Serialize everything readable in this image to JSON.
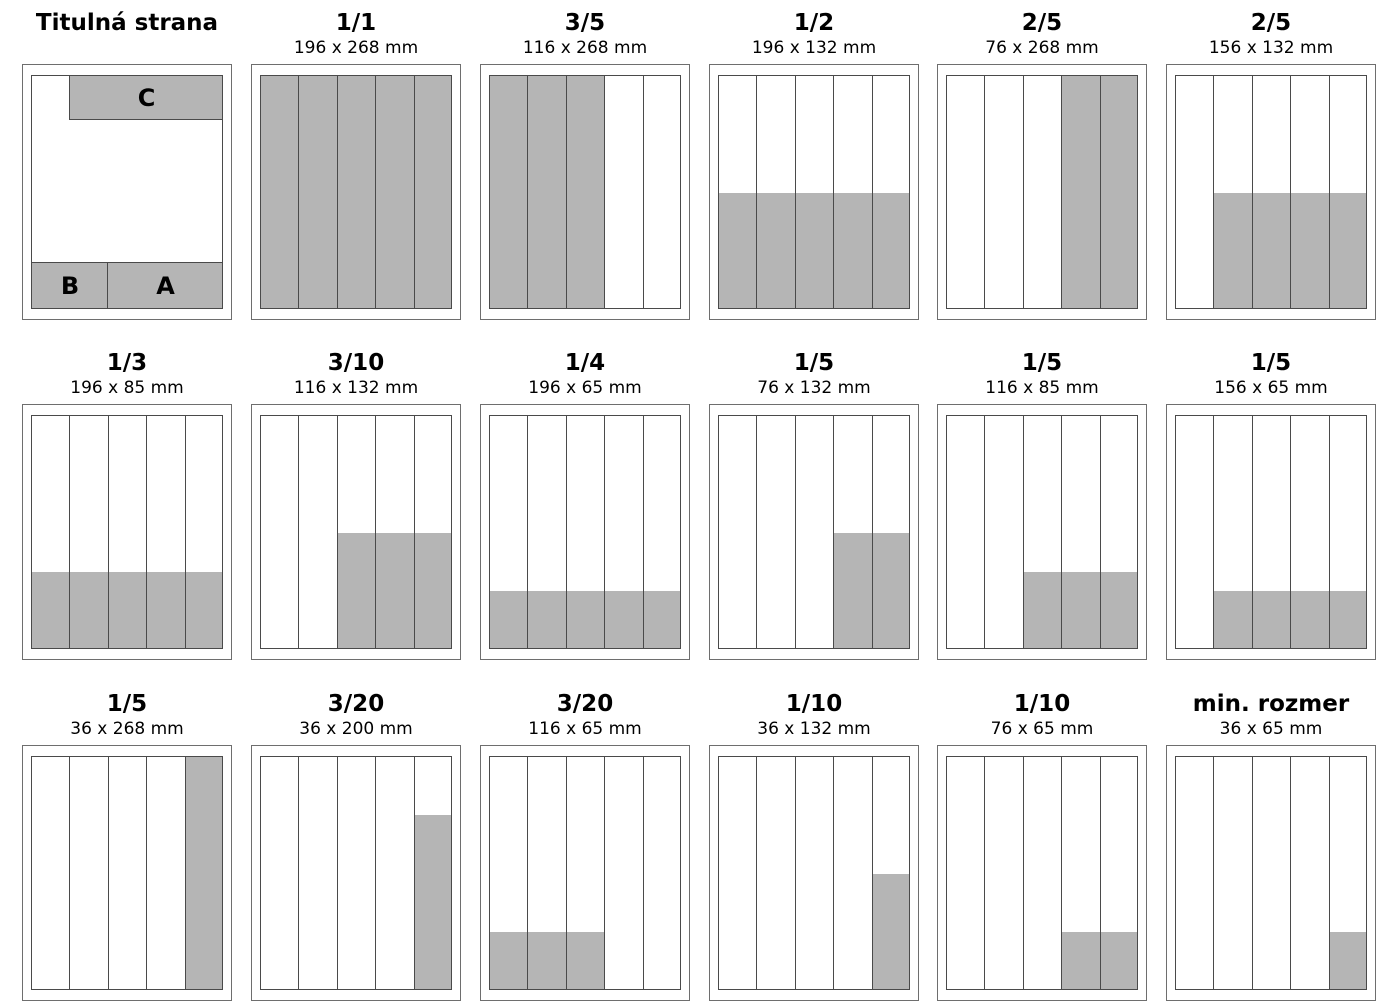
{
  "colors": {
    "fill": "#b5b5b5",
    "line": "#4a4a4a",
    "frame": "#6e6e6e"
  },
  "columns_per_page": 5,
  "cover": {
    "title": "Titulná strana",
    "zones": {
      "c": "C",
      "b": "B",
      "a": "A"
    }
  },
  "formats": [
    {
      "title": "1/1",
      "dims": "196 x 268 mm",
      "area": {
        "columns": [
          1,
          5
        ],
        "height_fraction": 1.0
      }
    },
    {
      "title": "3/5",
      "dims": "116 x 268 mm",
      "area": {
        "columns": [
          1,
          3
        ],
        "height_fraction": 1.0
      }
    },
    {
      "title": "1/2",
      "dims": "196 x 132 mm",
      "area": {
        "columns": [
          1,
          5
        ],
        "height_fraction": 0.5
      }
    },
    {
      "title": "2/5",
      "dims": "76 x 268 mm",
      "area": {
        "columns": [
          4,
          5
        ],
        "height_fraction": 1.0
      }
    },
    {
      "title": "2/5",
      "dims": "156 x 132 mm",
      "area": {
        "columns": [
          2,
          5
        ],
        "height_fraction": 0.5
      }
    },
    {
      "title": "1/3",
      "dims": "196 x 85 mm",
      "area": {
        "columns": [
          1,
          5
        ],
        "height_fraction": 0.333
      }
    },
    {
      "title": "3/10",
      "dims": "116 x 132 mm",
      "area": {
        "columns": [
          3,
          5
        ],
        "height_fraction": 0.5
      }
    },
    {
      "title": "1/4",
      "dims": "196 x 65 mm",
      "area": {
        "columns": [
          1,
          5
        ],
        "height_fraction": 0.25
      }
    },
    {
      "title": "1/5",
      "dims": "76 x 132 mm",
      "area": {
        "columns": [
          4,
          5
        ],
        "height_fraction": 0.5
      }
    },
    {
      "title": "1/5",
      "dims": "116 x 85 mm",
      "area": {
        "columns": [
          3,
          5
        ],
        "height_fraction": 0.333
      }
    },
    {
      "title": "1/5",
      "dims": "156 x 65 mm",
      "area": {
        "columns": [
          2,
          5
        ],
        "height_fraction": 0.25
      }
    },
    {
      "title": "1/5",
      "dims": "36 x 268 mm",
      "area": {
        "columns": [
          5,
          5
        ],
        "height_fraction": 1.0
      }
    },
    {
      "title": "3/20",
      "dims": "36 x 200 mm",
      "area": {
        "columns": [
          5,
          5
        ],
        "height_fraction": 0.75
      }
    },
    {
      "title": "3/20",
      "dims": "116 x 65 mm",
      "area": {
        "columns": [
          1,
          3
        ],
        "height_fraction": 0.25
      }
    },
    {
      "title": "1/10",
      "dims": "36 x 132 mm",
      "area": {
        "columns": [
          5,
          5
        ],
        "height_fraction": 0.5
      }
    },
    {
      "title": "1/10",
      "dims": "76 x 65 mm",
      "area": {
        "columns": [
          4,
          5
        ],
        "height_fraction": 0.25
      }
    },
    {
      "title": "min. rozmer",
      "dims": "36 x 65 mm",
      "area": {
        "columns": [
          5,
          5
        ],
        "height_fraction": 0.25
      }
    }
  ]
}
